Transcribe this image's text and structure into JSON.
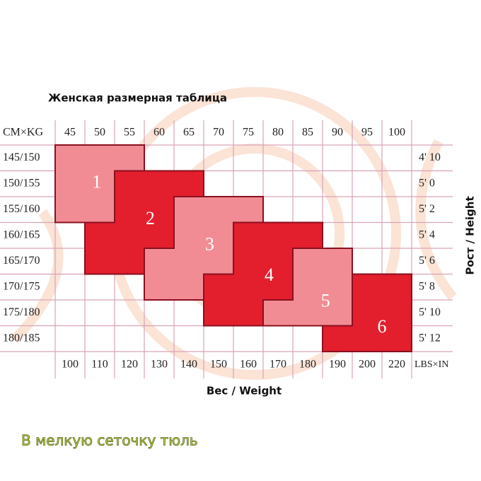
{
  "header": {
    "title": "Женская размерная таблица"
  },
  "table": {
    "corner_top_left": "CM×KG",
    "corner_bottom_right": "LBS×IN",
    "kg": [
      "45",
      "50",
      "55",
      "60",
      "65",
      "70",
      "75",
      "80",
      "85",
      "90",
      "95",
      "100"
    ],
    "lbs": [
      "100",
      "110",
      "120",
      "130",
      "140",
      "150",
      "160",
      "170",
      "180",
      "190",
      "200",
      "220"
    ],
    "cm": [
      "145/150",
      "150/155",
      "155/160",
      "160/165",
      "165/170",
      "170/175",
      "175/180",
      "180/185"
    ],
    "inches": [
      "4' 10",
      "5' 0",
      "5' 2",
      "5' 4",
      "5' 6",
      "5' 8",
      "5' 10",
      "5' 12"
    ],
    "height_label": "Рост / Height",
    "weight_label": "Вес / Weight",
    "sizes": [
      "1",
      "2",
      "3",
      "4",
      "5",
      "6"
    ]
  },
  "caption": "В мелкую сеточку тюль"
}
